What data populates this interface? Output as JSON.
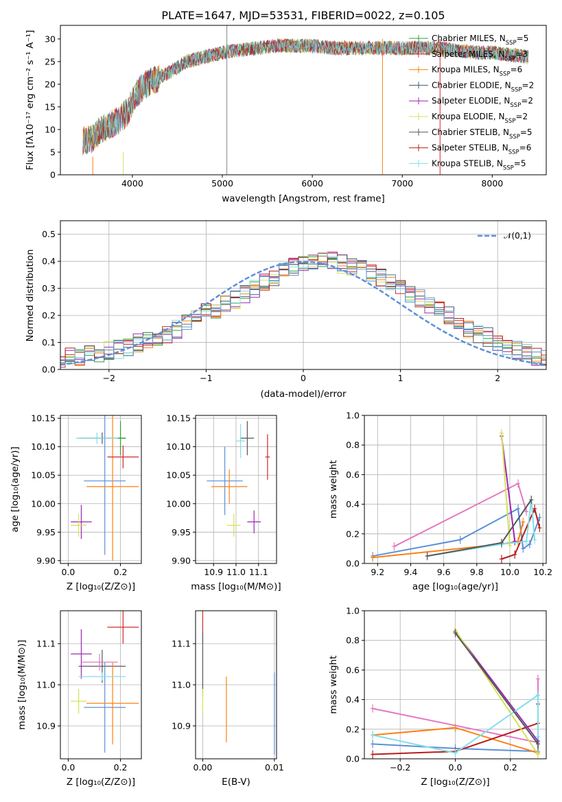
{
  "chart_data": [
    {
      "type": "line",
      "title": "PLATE=1647, MJD=53531, FIBERID=0022, z=0.105",
      "xlabel": "wavelength [Angstrom, rest frame]",
      "ylabel": "Flux [fλ10⁻¹⁷ erg cm⁻² s⁻¹ A⁻¹]",
      "xlim": [
        3200,
        8600
      ],
      "ylim": [
        0,
        33
      ],
      "xticks": [
        4000,
        5000,
        6000,
        7000,
        8000
      ],
      "yticks": [
        0,
        5,
        10,
        15,
        20,
        25,
        30
      ],
      "grid": false,
      "legend": "right",
      "continuum": {
        "x": [
          3450,
          3550,
          3650,
          3750,
          3850,
          3950,
          4050,
          4150,
          4250,
          4350,
          4450,
          4600,
          4800,
          5000,
          5200,
          5400,
          5600,
          5800,
          6000,
          6200,
          6400,
          6600,
          6800,
          7000,
          7200,
          7400,
          7600,
          7800,
          8000,
          8200,
          8400
        ],
        "y": [
          7.5,
          8,
          10,
          11,
          12,
          14,
          18,
          20,
          21,
          22,
          23,
          25,
          26,
          27,
          27.5,
          28,
          28.5,
          28.5,
          28.5,
          28,
          28,
          28,
          28,
          28,
          28,
          28,
          27.5,
          27,
          27,
          26.5,
          26
        ]
      },
      "series": [
        {
          "name": "Chabrier MILES, N_SSP=5",
          "color": "#2ca02c"
        },
        {
          "name": "Salpeter MILES, N_SSP=3",
          "color": "#d62728"
        },
        {
          "name": "Kroupa MILES, N_SSP=6",
          "color": "#ff7f0e"
        },
        {
          "name": "Chabrier ELODIE, N_SSP=2",
          "color": "#3a5a72"
        },
        {
          "name": "Salpeter ELODIE, N_SSP=2",
          "color": "#9c27b0"
        },
        {
          "name": "Kroupa ELODIE, N_SSP=2",
          "color": "#d4e157"
        },
        {
          "name": "Chabrier STELIB, N_SSP=5",
          "color": "#555555"
        },
        {
          "name": "Salpeter STELIB, N_SSP=6",
          "color": "#b71c1c"
        },
        {
          "name": "Kroupa STELIB, N_SSP=5",
          "color": "#80deea"
        }
      ],
      "legend_labels": [
        {
          "prefix": "Chabrier MILES, N",
          "sub": "SSP",
          "suffix": "=5"
        },
        {
          "prefix": "Salpeter MILES, N",
          "sub": "SSP",
          "suffix": "=3"
        },
        {
          "prefix": "Kroupa MILES, N",
          "sub": "SSP",
          "suffix": "=6"
        },
        {
          "prefix": "Chabrier ELODIE, N",
          "sub": "SSP",
          "suffix": "=2"
        },
        {
          "prefix": "Salpeter ELODIE, N",
          "sub": "SSP",
          "suffix": "=2"
        },
        {
          "prefix": "Kroupa ELODIE, N",
          "sub": "SSP",
          "suffix": "=2"
        },
        {
          "prefix": "Chabrier STELIB, N",
          "sub": "SSP",
          "suffix": "=5"
        },
        {
          "prefix": "Salpeter STELIB, N",
          "sub": "SSP",
          "suffix": "=6"
        },
        {
          "prefix": "Kroupa STELIB, N",
          "sub": "SSP",
          "suffix": "=5"
        }
      ],
      "spikes": [
        {
          "x": 5050,
          "y0": 0,
          "y1": 33,
          "color": "#888888"
        },
        {
          "x": 3900,
          "y0": 0,
          "y1": 5,
          "color": "#d4e157"
        },
        {
          "x": 6780,
          "y0": 0,
          "y1": 30,
          "color": "#ff7f0e"
        },
        {
          "x": 7420,
          "y0": 0,
          "y1": 30,
          "color": "#d62728"
        },
        {
          "x": 3560,
          "y0": 0,
          "y1": 4,
          "color": "#ff7f0e"
        }
      ]
    },
    {
      "type": "line",
      "xlabel": "(data-model)/error",
      "ylabel": "Normed distribution",
      "xlim": [
        -2.5,
        2.5
      ],
      "ylim": [
        0,
        0.55
      ],
      "xticks": [
        -2,
        -1,
        0,
        1,
        2
      ],
      "yticks": [
        0.0,
        0.1,
        0.2,
        0.3,
        0.4,
        0.5
      ],
      "xtick_labels": [
        "−2",
        "−1",
        "0",
        "1",
        "2"
      ],
      "ytick_labels": [
        "0.0",
        "0.1",
        "0.2",
        "0.3",
        "0.4",
        "0.5"
      ],
      "grid": true,
      "legend": "top-right",
      "reference_curve": {
        "name": "𝒩(0,1)",
        "color": "#5b8fd9",
        "dash": true
      },
      "histogram_bin_width": 0.1,
      "histogram_envelope": [
        0.02,
        0.025,
        0.03,
        0.04,
        0.045,
        0.05,
        0.055,
        0.06,
        0.07,
        0.075,
        0.085,
        0.1,
        0.11,
        0.12,
        0.13,
        0.15,
        0.18,
        0.2,
        0.21,
        0.22,
        0.24,
        0.26,
        0.28,
        0.3,
        0.32,
        0.34,
        0.36,
        0.38,
        0.39,
        0.4,
        0.4,
        0.4,
        0.39,
        0.38,
        0.37,
        0.36,
        0.34,
        0.32,
        0.3,
        0.28,
        0.26,
        0.24,
        0.22,
        0.2,
        0.18,
        0.15,
        0.13,
        0.12,
        0.1,
        0.08,
        0.07,
        0.06,
        0.05,
        0.045,
        0.04,
        0.035,
        0.03
      ]
    },
    {
      "type": "scatter",
      "xlabel": "Z [log₁₀(Z/Z⊙)]",
      "ylabel": "age  [log₁₀(age/yr)]",
      "xlim": [
        -0.03,
        0.28
      ],
      "ylim": [
        9.895,
        10.155
      ],
      "xticks": [
        0.0,
        0.2
      ],
      "xtick_labels": [
        "0.0",
        "0.2"
      ],
      "yticks": [
        9.9,
        9.95,
        10.0,
        10.05,
        10.1,
        10.15
      ],
      "ytick_labels": [
        "9.90",
        "9.95",
        "10.00",
        "10.05",
        "10.10",
        "10.15"
      ],
      "grid": true,
      "points": [
        {
          "x": 0.13,
          "y": 10.115,
          "xerr": 0.09,
          "yerr": 0.01,
          "color": "#555555"
        },
        {
          "x": 0.2,
          "y": 10.115,
          "xerr": 0.02,
          "yerr": 0.03,
          "color": "#2ca02c"
        },
        {
          "x": 0.14,
          "y": 10.04,
          "xerr": 0.08,
          "yerr": 0.13,
          "color": "#5b8fd9"
        },
        {
          "x": 0.17,
          "y": 10.03,
          "xerr": 0.1,
          "yerr": 0.13,
          "color": "#ff7f0e"
        },
        {
          "x": 0.21,
          "y": 10.082,
          "xerr": 0.06,
          "yerr": 0.02,
          "color": "#d62728"
        },
        {
          "x": 0.05,
          "y": 9.968,
          "xerr": 0.04,
          "yerr": 0.03,
          "color": "#9c27b0"
        },
        {
          "x": 0.04,
          "y": 9.962,
          "xerr": 0.03,
          "yerr": 0.02,
          "color": "#d4e157"
        },
        {
          "x": 0.11,
          "y": 10.115,
          "xerr": 0.08,
          "yerr": 0.01,
          "color": "#80deea"
        }
      ]
    },
    {
      "type": "scatter",
      "xlabel": "mass [log₁₀(M/M⊙)]",
      "ylabel": "",
      "xlim": [
        10.82,
        11.18
      ],
      "ylim": [
        9.895,
        10.155
      ],
      "xticks": [
        10.9,
        11.0,
        11.1
      ],
      "xtick_labels": [
        "10.9",
        "11.0",
        "11.1"
      ],
      "yticks": [
        9.9,
        9.95,
        10.0,
        10.05,
        10.1,
        10.15
      ],
      "ytick_labels": [
        "9.90",
        "9.95",
        "10.00",
        "10.05",
        "10.10",
        "10.15"
      ],
      "grid": true,
      "points": [
        {
          "x": 10.95,
          "y": 10.04,
          "xerr": 0.08,
          "yerr": 0.06,
          "color": "#5b8fd9"
        },
        {
          "x": 10.97,
          "y": 10.03,
          "xerr": 0.08,
          "yerr": 0.03,
          "color": "#ff7f0e"
        },
        {
          "x": 11.05,
          "y": 10.115,
          "xerr": 0.03,
          "yerr": 0.03,
          "color": "#555555"
        },
        {
          "x": 11.14,
          "y": 10.082,
          "xerr": 0.01,
          "yerr": 0.04,
          "color": "#d62728"
        },
        {
          "x": 11.08,
          "y": 9.968,
          "xerr": 0.03,
          "yerr": 0.02,
          "color": "#9c27b0"
        },
        {
          "x": 10.99,
          "y": 9.962,
          "xerr": 0.03,
          "yerr": 0.02,
          "color": "#d4e157"
        },
        {
          "x": 11.02,
          "y": 10.11,
          "xerr": 0.02,
          "yerr": 0.03,
          "color": "#80deea"
        }
      ]
    },
    {
      "type": "line",
      "xlabel": "age  [log₁₀(age/yr)]",
      "ylabel": "mass weight",
      "xlim": [
        9.12,
        10.22
      ],
      "ylim": [
        0,
        1.0
      ],
      "xticks": [
        9.2,
        9.4,
        9.6,
        9.8,
        10.0,
        10.2
      ],
      "xtick_labels": [
        "9.2",
        "9.4",
        "9.6",
        "9.8",
        "10.0",
        "10.2"
      ],
      "yticks": [
        0.0,
        0.2,
        0.4,
        0.6,
        0.8,
        1.0
      ],
      "ytick_labels": [
        "0.0",
        "0.2",
        "0.4",
        "0.6",
        "0.8",
        "1.0"
      ],
      "grid": true,
      "series": [
        {
          "color": "#e377c2",
          "x": [
            9.3,
            10.05,
            10.1
          ],
          "y": [
            0.115,
            0.54,
            0.35
          ]
        },
        {
          "color": "#5b8fd9",
          "x": [
            9.17,
            9.7,
            10.05,
            10.08,
            10.12,
            10.18
          ],
          "y": [
            0.05,
            0.16,
            0.37,
            0.1,
            0.13,
            0.31
          ]
        },
        {
          "color": "#ff7f0e",
          "x": [
            9.17,
            9.95,
            10.05,
            10.08
          ],
          "y": [
            0.04,
            0.13,
            0.15,
            0.28
          ]
        },
        {
          "color": "#b71c1c",
          "x": [
            9.95,
            10.03,
            10.15,
            10.18
          ],
          "y": [
            0.03,
            0.06,
            0.37,
            0.24
          ]
        },
        {
          "color": "#9c27b0",
          "x": [
            9.95,
            10.03
          ],
          "y": [
            0.86,
            0.15
          ]
        },
        {
          "color": "#d4e157",
          "x": [
            9.95,
            10.0
          ],
          "y": [
            0.88,
            0.12
          ]
        },
        {
          "color": "#80deea",
          "x": [
            9.5,
            9.95,
            10.1,
            10.13,
            10.15
          ],
          "y": [
            0.05,
            0.13,
            0.15,
            0.43,
            0.16
          ]
        },
        {
          "color": "#555555",
          "x": [
            9.5,
            9.95,
            10.13
          ],
          "y": [
            0.05,
            0.14,
            0.43
          ]
        }
      ]
    },
    {
      "type": "scatter",
      "xlabel": "Z [log₁₀(Z/Z⊙)]",
      "ylabel": "mass [log₁₀(M/M⊙)]",
      "xlim": [
        -0.03,
        0.28
      ],
      "ylim": [
        10.82,
        11.18
      ],
      "xticks": [
        0.0,
        0.2
      ],
      "xtick_labels": [
        "0.0",
        "0.2"
      ],
      "yticks": [
        10.9,
        11.0,
        11.1
      ],
      "ytick_labels": [
        "10.9",
        "11.0",
        "11.1"
      ],
      "grid": true,
      "points": [
        {
          "x": 0.21,
          "y": 11.14,
          "xerr": 0.06,
          "yerr": 0.04,
          "color": "#d62728"
        },
        {
          "x": 0.13,
          "y": 11.045,
          "xerr": 0.09,
          "yerr": 0.04,
          "color": "#555555"
        },
        {
          "x": 0.14,
          "y": 10.945,
          "xerr": 0.08,
          "yerr": 0.11,
          "color": "#5b8fd9"
        },
        {
          "x": 0.17,
          "y": 10.955,
          "xerr": 0.1,
          "yerr": 0.1,
          "color": "#ff7f0e"
        },
        {
          "x": 0.05,
          "y": 11.075,
          "xerr": 0.04,
          "yerr": 0.06,
          "color": "#9c27b0"
        },
        {
          "x": 0.04,
          "y": 10.96,
          "xerr": 0.03,
          "yerr": 0.03,
          "color": "#d4e157"
        },
        {
          "x": 0.12,
          "y": 11.055,
          "xerr": 0.07,
          "yerr": 0.02,
          "color": "#e377c2"
        },
        {
          "x": 0.13,
          "y": 11.02,
          "xerr": 0.09,
          "yerr": 0.01,
          "color": "#80deea"
        }
      ]
    },
    {
      "type": "scatter",
      "xlabel": "E(B-V)",
      "ylabel": "",
      "xlim": [
        -0.001,
        0.0103
      ],
      "ylim": [
        10.82,
        11.18
      ],
      "xticks": [
        0.0,
        0.01
      ],
      "xtick_labels": [
        "0.00",
        "0.01"
      ],
      "yticks": [
        10.9,
        11.0,
        11.1
      ],
      "ytick_labels": [
        "10.9",
        "11.0",
        "11.1"
      ],
      "grid": true,
      "points": [
        {
          "x": 0.0,
          "y": 11.14,
          "xerr": 0,
          "yerr": 0.04,
          "color": "#d62728"
        },
        {
          "x": 0.0,
          "y": 11.05,
          "xerr": 0,
          "yerr": 0.08,
          "color": "#555555"
        },
        {
          "x": 0.0,
          "y": 10.96,
          "xerr": 0,
          "yerr": 0.03,
          "color": "#d4e157"
        },
        {
          "x": 0.0033,
          "y": 10.94,
          "xerr": 0,
          "yerr": 0.08,
          "color": "#ff7f0e"
        },
        {
          "x": 0.01,
          "y": 10.93,
          "xerr": 0,
          "yerr": 0.1,
          "color": "#5b8fd9"
        }
      ]
    },
    {
      "type": "line",
      "xlabel": "Z [log₁₀(Z/Z⊙)]",
      "ylabel": "mass weight",
      "xlim": [
        -0.33,
        0.33
      ],
      "ylim": [
        0,
        1.0
      ],
      "xticks": [
        -0.2,
        0.0,
        0.2
      ],
      "xtick_labels": [
        "−0.2",
        "0.0",
        "0.2"
      ],
      "yticks": [
        0.0,
        0.2,
        0.4,
        0.6,
        0.8,
        1.0
      ],
      "ytick_labels": [
        "0.0",
        "0.2",
        "0.4",
        "0.6",
        "0.8",
        "1.0"
      ],
      "grid": true,
      "series": [
        {
          "color": "#e377c2",
          "x": [
            -0.3,
            0.3,
            0.3
          ],
          "y": [
            0.34,
            0.11,
            0.54
          ]
        },
        {
          "color": "#5b8fd9",
          "x": [
            -0.3,
            0.0,
            0.3,
            0.3
          ],
          "y": [
            0.1,
            0.07,
            0.05,
            0.43
          ]
        },
        {
          "color": "#ff7f0e",
          "x": [
            -0.3,
            0.0,
            0.3
          ],
          "y": [
            0.16,
            0.21,
            0.04
          ]
        },
        {
          "color": "#b71c1c",
          "x": [
            -0.3,
            0.0,
            0.3,
            0.3
          ],
          "y": [
            0.03,
            0.05,
            0.24,
            0.37
          ]
        },
        {
          "color": "#9c27b0",
          "x": [
            0.0,
            0.3
          ],
          "y": [
            0.86,
            0.12
          ]
        },
        {
          "color": "#d4e157",
          "x": [
            0.0,
            0.3
          ],
          "y": [
            0.87,
            0.03
          ]
        },
        {
          "color": "#80deea",
          "x": [
            -0.3,
            0.0,
            0.3,
            0.3
          ],
          "y": [
            0.16,
            0.04,
            0.43,
            0.15
          ]
        },
        {
          "color": "#555555",
          "x": [
            0.0,
            0.3
          ],
          "y": [
            0.85,
            0.1
          ]
        }
      ]
    }
  ]
}
